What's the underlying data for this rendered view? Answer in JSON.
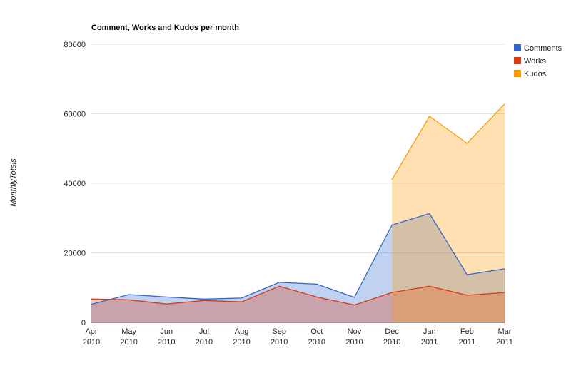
{
  "chart_data": {
    "type": "area",
    "title": "Comment, Works and Kudos per month",
    "xlabel": "",
    "ylabel": "MonthlyTotals",
    "ylim": [
      0,
      80000
    ],
    "yticks": [
      "0",
      "20000",
      "40000",
      "60000",
      "80000"
    ],
    "grid": true,
    "legend_position": "top-right",
    "categories": [
      [
        "Apr",
        "2010"
      ],
      [
        "May",
        "2010"
      ],
      [
        "Jun",
        "2010"
      ],
      [
        "Jul",
        "2010"
      ],
      [
        "Aug",
        "2010"
      ],
      [
        "Sep",
        "2010"
      ],
      [
        "Oct",
        "2010"
      ],
      [
        "Nov",
        "2010"
      ],
      [
        "Dec",
        "2010"
      ],
      [
        "Jan",
        "2011"
      ],
      [
        "Feb",
        "2011"
      ],
      [
        "Mar",
        "2011"
      ]
    ],
    "series": [
      {
        "name": "Comments",
        "color": "#3366cc",
        "values": [
          5200,
          8000,
          7300,
          6700,
          7000,
          11500,
          11000,
          7200,
          28000,
          31300,
          13700,
          15400
        ]
      },
      {
        "name": "Works",
        "color": "#dc3912",
        "values": [
          6700,
          6500,
          5300,
          6300,
          5900,
          10400,
          7300,
          5000,
          8600,
          10400,
          7800,
          8600
        ]
      },
      {
        "name": "Kudos",
        "color": "#ff9900",
        "values": [
          null,
          null,
          null,
          null,
          null,
          null,
          null,
          null,
          41000,
          59300,
          51500,
          62800
        ]
      }
    ]
  }
}
